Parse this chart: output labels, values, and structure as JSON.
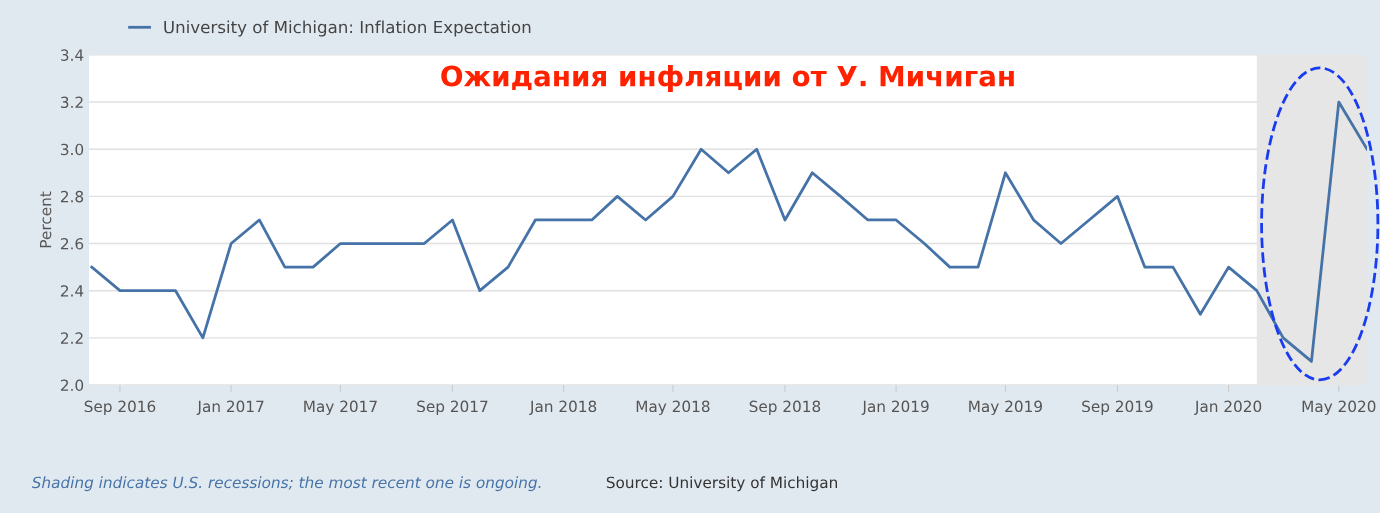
{
  "chart_data": {
    "type": "line",
    "title": "Ожидания инфляции от У. Мичиган",
    "ylabel": "Percent",
    "x": [
      "2016-08",
      "2016-09",
      "2016-10",
      "2016-11",
      "2016-12",
      "2017-01",
      "2017-02",
      "2017-03",
      "2017-04",
      "2017-05",
      "2017-06",
      "2017-07",
      "2017-08",
      "2017-09",
      "2017-10",
      "2017-11",
      "2017-12",
      "2018-01",
      "2018-02",
      "2018-03",
      "2018-04",
      "2018-05",
      "2018-06",
      "2018-07",
      "2018-08",
      "2018-09",
      "2018-10",
      "2018-11",
      "2018-12",
      "2019-01",
      "2019-02",
      "2019-03",
      "2019-04",
      "2019-05",
      "2019-06",
      "2019-07",
      "2019-08",
      "2019-09",
      "2019-10",
      "2019-11",
      "2019-12",
      "2020-01",
      "2020-02",
      "2020-03",
      "2020-04",
      "2020-05",
      "2020-06"
    ],
    "series": [
      {
        "name": "University of Michigan: Inflation Expectation",
        "color": "#4572a7",
        "values": [
          2.5,
          2.4,
          2.4,
          2.4,
          2.2,
          2.6,
          2.7,
          2.5,
          2.5,
          2.6,
          2.6,
          2.6,
          2.6,
          2.7,
          2.4,
          2.5,
          2.7,
          2.7,
          2.7,
          2.8,
          2.7,
          2.8,
          3.0,
          2.9,
          3.0,
          2.7,
          2.9,
          2.8,
          2.7,
          2.7,
          2.6,
          2.5,
          2.5,
          2.9,
          2.7,
          2.6,
          2.7,
          2.8,
          2.5,
          2.5,
          2.3,
          2.5,
          2.4,
          2.2,
          2.1,
          3.2,
          3.0
        ]
      }
    ],
    "xlim": [
      "2016-07-29",
      "2020-06-01"
    ],
    "xticks": [
      {
        "value": "2016-09",
        "label": "Sep 2016"
      },
      {
        "value": "2017-01",
        "label": "Jan 2017"
      },
      {
        "value": "2017-05",
        "label": "May 2017"
      },
      {
        "value": "2017-09",
        "label": "Sep 2017"
      },
      {
        "value": "2018-01",
        "label": "Jan 2018"
      },
      {
        "value": "2018-05",
        "label": "May 2018"
      },
      {
        "value": "2018-09",
        "label": "Sep 2018"
      },
      {
        "value": "2019-01",
        "label": "Jan 2019"
      },
      {
        "value": "2019-05",
        "label": "May 2019"
      },
      {
        "value": "2019-09",
        "label": "Sep 2019"
      },
      {
        "value": "2020-01",
        "label": "Jan 2020"
      },
      {
        "value": "2020-05",
        "label": "May 2020"
      }
    ],
    "ylim": [
      2.0,
      3.4
    ],
    "yticks": [
      {
        "value": 2,
        "label": "2.0"
      },
      2.2,
      2.4,
      2.6,
      2.8,
      {
        "value": 3,
        "label": "3.0"
      },
      3.2,
      3.4
    ],
    "bands": [
      {
        "axis": "x",
        "from": "2020-02",
        "to": "2020-06",
        "color": "#e6e6e6"
      }
    ],
    "grid": "y",
    "legend": "top left",
    "marker": "none",
    "line_style": "solid",
    "annotations": [
      "Shading indicates U.S. recessions; the most recent one is ongoing.",
      "Source: University of Michigan"
    ]
  }
}
